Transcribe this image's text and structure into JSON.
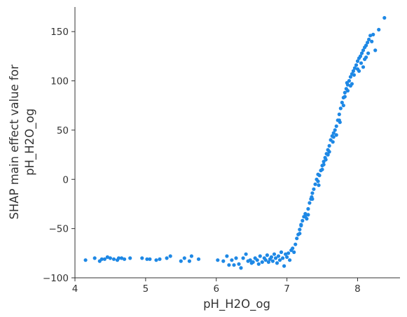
{
  "chart_data": {
    "type": "scatter",
    "xlabel": "pH_H2O_og",
    "ylabel": "SHAP main effect value for\npH_H2O_og",
    "xlim": [
      4.0,
      8.6
    ],
    "ylim": [
      -100,
      175
    ],
    "xticks": [
      4,
      5,
      6,
      7,
      8
    ],
    "yticks": [
      -100,
      -50,
      0,
      50,
      100,
      150
    ],
    "ytick_labels": [
      "−100",
      "−50",
      "0",
      "50",
      "100",
      "150"
    ],
    "grid": false,
    "point_color": "#1E88E5",
    "series": [
      {
        "points": [
          [
            4.15,
            -82
          ],
          [
            4.28,
            -80
          ],
          [
            4.35,
            -83
          ],
          [
            4.38,
            -81
          ],
          [
            4.42,
            -81
          ],
          [
            4.46,
            -79
          ],
          [
            4.5,
            -80
          ],
          [
            4.55,
            -81
          ],
          [
            4.6,
            -82
          ],
          [
            4.62,
            -80
          ],
          [
            4.66,
            -80
          ],
          [
            4.7,
            -81
          ],
          [
            4.78,
            -80
          ],
          [
            4.95,
            -80
          ],
          [
            5.02,
            -81
          ],
          [
            5.06,
            -81
          ],
          [
            5.15,
            -82
          ],
          [
            5.2,
            -81
          ],
          [
            5.3,
            -80
          ],
          [
            5.35,
            -78
          ],
          [
            5.5,
            -83
          ],
          [
            5.55,
            -80
          ],
          [
            5.62,
            -83
          ],
          [
            5.65,
            -78
          ],
          [
            5.75,
            -81
          ],
          [
            6.02,
            -82
          ],
          [
            6.1,
            -83
          ],
          [
            6.15,
            -78
          ],
          [
            6.18,
            -87
          ],
          [
            6.22,
            -82
          ],
          [
            6.25,
            -87
          ],
          [
            6.28,
            -80
          ],
          [
            6.32,
            -86
          ],
          [
            6.35,
            -90
          ],
          [
            6.38,
            -80
          ],
          [
            6.42,
            -76
          ],
          [
            6.45,
            -83
          ],
          [
            6.48,
            -82
          ],
          [
            6.5,
            -85
          ],
          [
            6.52,
            -84
          ],
          [
            6.55,
            -80
          ],
          [
            6.58,
            -82
          ],
          [
            6.6,
            -86
          ],
          [
            6.62,
            -78
          ],
          [
            6.65,
            -84
          ],
          [
            6.68,
            -80
          ],
          [
            6.7,
            -82
          ],
          [
            6.72,
            -77
          ],
          [
            6.74,
            -84
          ],
          [
            6.76,
            -81
          ],
          [
            6.78,
            -79
          ],
          [
            6.8,
            -83
          ],
          [
            6.82,
            -76
          ],
          [
            6.84,
            -80
          ],
          [
            6.86,
            -85
          ],
          [
            6.88,
            -78
          ],
          [
            6.9,
            -82
          ],
          [
            6.92,
            -74
          ],
          [
            6.94,
            -80
          ],
          [
            6.96,
            -88
          ],
          [
            6.98,
            -76
          ],
          [
            7.0,
            -79
          ],
          [
            7.02,
            -75
          ],
          [
            7.04,
            -82
          ],
          [
            7.06,
            -72
          ],
          [
            7.08,
            -70
          ],
          [
            7.1,
            -74
          ],
          [
            7.12,
            -66
          ],
          [
            7.14,
            -60
          ],
          [
            7.16,
            -56
          ],
          [
            7.18,
            -51
          ],
          [
            7.2,
            -46
          ],
          [
            7.22,
            -42
          ],
          [
            7.24,
            -38
          ],
          [
            7.26,
            -35
          ],
          [
            7.28,
            -40
          ],
          [
            7.3,
            -30
          ],
          [
            7.32,
            -24
          ],
          [
            7.34,
            -20
          ],
          [
            7.36,
            -14
          ],
          [
            7.38,
            -10
          ],
          [
            7.4,
            -5
          ],
          [
            7.42,
            0
          ],
          [
            7.44,
            -2
          ],
          [
            7.46,
            4
          ],
          [
            7.48,
            9
          ],
          [
            7.5,
            14
          ],
          [
            7.52,
            18
          ],
          [
            7.54,
            22
          ],
          [
            7.56,
            26
          ],
          [
            7.58,
            30
          ],
          [
            7.6,
            34
          ],
          [
            7.62,
            40
          ],
          [
            7.64,
            44
          ],
          [
            7.66,
            47
          ],
          [
            7.68,
            50
          ],
          [
            7.7,
            54
          ],
          [
            7.72,
            60
          ],
          [
            7.74,
            66
          ],
          [
            7.76,
            72
          ],
          [
            7.78,
            78
          ],
          [
            7.8,
            83
          ],
          [
            7.82,
            88
          ],
          [
            7.84,
            92
          ],
          [
            7.86,
            96
          ],
          [
            7.88,
            100
          ],
          [
            7.9,
            104
          ],
          [
            7.92,
            107
          ],
          [
            7.94,
            110
          ],
          [
            7.96,
            113
          ],
          [
            7.98,
            116
          ],
          [
            8.0,
            120
          ],
          [
            8.02,
            123
          ],
          [
            8.04,
            125
          ],
          [
            8.06,
            128
          ],
          [
            8.08,
            131
          ],
          [
            8.1,
            134
          ],
          [
            8.12,
            136
          ],
          [
            8.14,
            139
          ],
          [
            8.16,
            142
          ],
          [
            8.18,
            146
          ],
          [
            8.22,
            147
          ],
          [
            8.25,
            131
          ],
          [
            8.3,
            152
          ],
          [
            8.38,
            164
          ],
          [
            7.3,
            -36
          ],
          [
            7.35,
            -18
          ],
          [
            7.45,
            -6
          ],
          [
            7.5,
            10
          ],
          [
            7.55,
            20
          ],
          [
            7.6,
            28
          ],
          [
            7.65,
            38
          ],
          [
            7.7,
            45
          ],
          [
            7.75,
            58
          ],
          [
            7.8,
            75
          ],
          [
            7.85,
            98
          ],
          [
            7.9,
            95
          ],
          [
            7.95,
            106
          ],
          [
            8.0,
            112
          ],
          [
            8.05,
            118
          ],
          [
            8.1,
            122
          ],
          [
            8.15,
            128
          ],
          [
            8.2,
            140
          ],
          [
            8.02,
            110
          ],
          [
            8.08,
            114
          ],
          [
            8.12,
            124
          ],
          [
            7.92,
            97
          ],
          [
            7.86,
            90
          ],
          [
            7.82,
            84
          ],
          [
            7.74,
            60
          ],
          [
            7.66,
            43
          ],
          [
            7.58,
            25
          ],
          [
            7.52,
            15
          ],
          [
            7.44,
            5
          ],
          [
            7.36,
            -20
          ],
          [
            7.26,
            -38
          ],
          [
            7.2,
            -47
          ],
          [
            7.18,
            -55
          ]
        ]
      }
    ]
  }
}
